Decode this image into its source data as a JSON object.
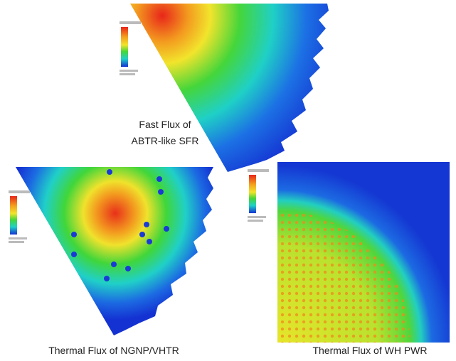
{
  "captions": {
    "sfr": [
      "Fast Flux of",
      "ABTR-like SFR"
    ],
    "vhtr": "Thermal Flux of NGNP/VHTR",
    "pwr": "Thermal Flux of WH PWR"
  }
}
